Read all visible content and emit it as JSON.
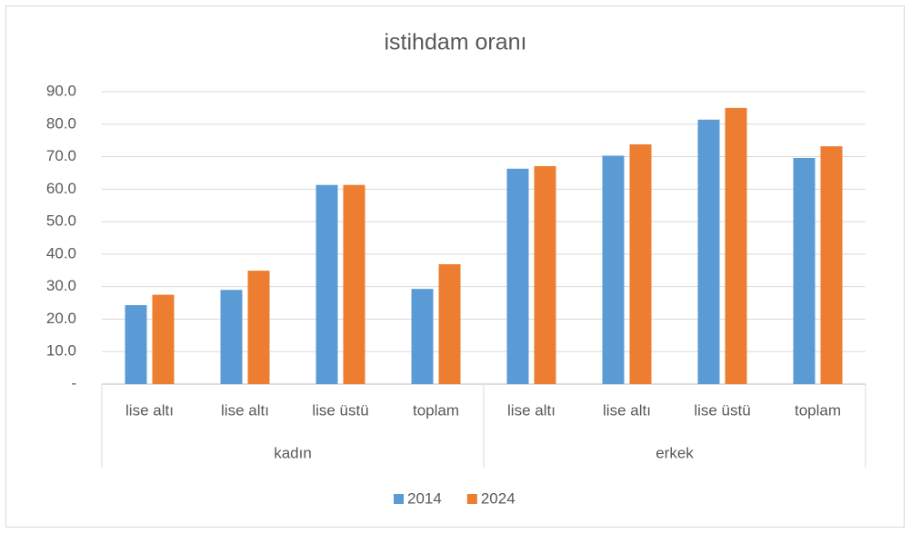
{
  "chart_data": {
    "type": "bar",
    "title": "istihdam oranı",
    "categories": [
      "lise altı",
      "lise altı",
      "lise üstü",
      "toplam",
      "lise altı",
      "lise altı",
      "lise üstü",
      "toplam"
    ],
    "category_groups": [
      "kadın",
      "erkek"
    ],
    "series": [
      {
        "name": "2014",
        "color": "#5b9bd5",
        "values": [
          24.3,
          29.0,
          61.3,
          29.3,
          66.3,
          70.3,
          81.4,
          69.6
        ]
      },
      {
        "name": "2024",
        "color": "#ed7d31",
        "values": [
          27.5,
          34.9,
          61.3,
          36.9,
          67.1,
          73.8,
          85.0,
          73.2
        ]
      }
    ],
    "ylim": [
      0,
      90
    ],
    "yticks": [
      {
        "value": 0,
        "label": "-"
      },
      {
        "value": 10,
        "label": "10.0"
      },
      {
        "value": 20,
        "label": "20.0"
      },
      {
        "value": 30,
        "label": "30.0"
      },
      {
        "value": 40,
        "label": "40.0"
      },
      {
        "value": 50,
        "label": "50.0"
      },
      {
        "value": 60,
        "label": "60.0"
      },
      {
        "value": 70,
        "label": "70.0"
      },
      {
        "value": 80,
        "label": "80.0"
      },
      {
        "value": 90,
        "label": "90.0"
      }
    ],
    "grid": true,
    "legend": "bottom"
  }
}
